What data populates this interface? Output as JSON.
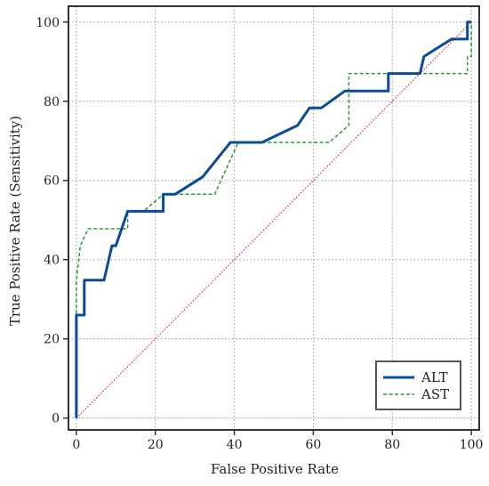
{
  "chart_data": {
    "type": "line",
    "title": "",
    "xlabel": "False Positive Rate",
    "ylabel": "True Positive Rate (Sensitivity)",
    "xlim": [
      -2,
      102
    ],
    "ylim": [
      -3,
      104
    ],
    "xticks": [
      0,
      20,
      40,
      60,
      80,
      100
    ],
    "yticks": [
      0,
      20,
      40,
      60,
      80,
      100
    ],
    "grid": true,
    "legend_position": "bottom-right",
    "series": [
      {
        "name": "ALT",
        "color": "#0b4a97",
        "style": "solid",
        "points": [
          [
            0,
            0
          ],
          [
            0,
            26
          ],
          [
            2,
            26
          ],
          [
            2,
            34.8
          ],
          [
            7,
            34.8
          ],
          [
            9,
            43.5
          ],
          [
            10,
            43.5
          ],
          [
            13,
            52.2
          ],
          [
            22,
            52.2
          ],
          [
            22,
            56.5
          ],
          [
            25,
            56.5
          ],
          [
            32,
            60.9
          ],
          [
            39,
            69.6
          ],
          [
            47,
            69.6
          ],
          [
            56,
            73.9
          ],
          [
            59,
            78.3
          ],
          [
            62,
            78.3
          ],
          [
            68,
            82.6
          ],
          [
            79,
            82.6
          ],
          [
            79,
            87
          ],
          [
            87,
            87
          ],
          [
            88,
            91.3
          ],
          [
            95,
            95.7
          ],
          [
            99,
            95.7
          ],
          [
            99,
            100
          ],
          [
            100,
            100
          ]
        ]
      },
      {
        "name": "AST",
        "color": "#2e9a2e",
        "style": "dashed",
        "points": [
          [
            0,
            0
          ],
          [
            0,
            34.8
          ],
          [
            1,
            43.5
          ],
          [
            3,
            47.8
          ],
          [
            13,
            47.8
          ],
          [
            13,
            52.2
          ],
          [
            17,
            52.2
          ],
          [
            22,
            56.5
          ],
          [
            35,
            56.5
          ],
          [
            39,
            65.2
          ],
          [
            41,
            69.6
          ],
          [
            64,
            69.6
          ],
          [
            69,
            73.9
          ],
          [
            69,
            87
          ],
          [
            99,
            87
          ],
          [
            99,
            91.3
          ],
          [
            100,
            91.3
          ],
          [
            100,
            100
          ]
        ]
      },
      {
        "name": "",
        "color": "#d83030",
        "style": "dotted",
        "points": [
          [
            0,
            0
          ],
          [
            100,
            100
          ]
        ]
      }
    ],
    "legend": [
      "ALT",
      "AST"
    ]
  }
}
